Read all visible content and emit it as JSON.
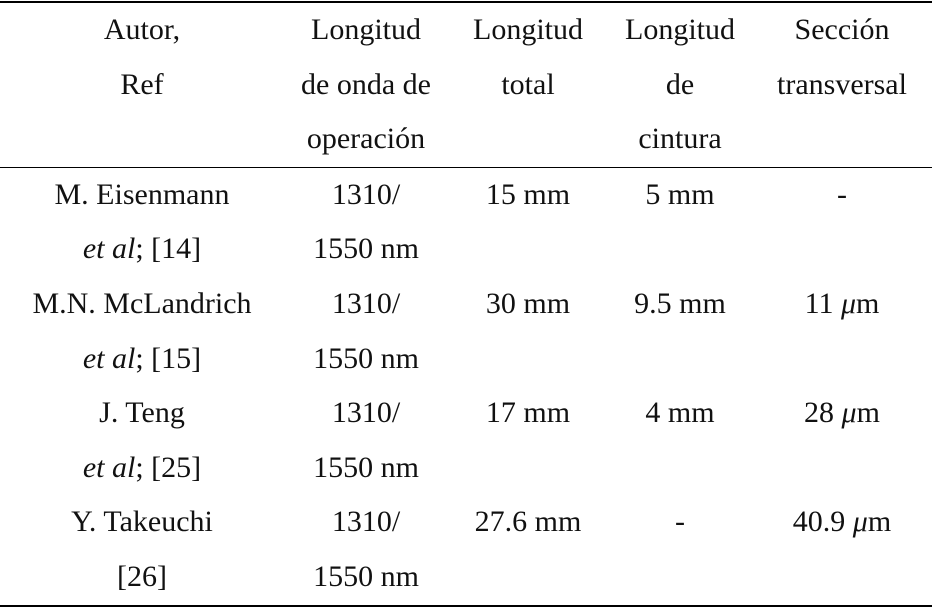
{
  "table": {
    "header": [
      [
        "Autor,",
        "Ref"
      ],
      [
        "Longitud",
        "de onda de",
        "operación"
      ],
      [
        "Longitud",
        "total"
      ],
      [
        "Longitud",
        "de",
        "cintura"
      ],
      [
        "Sección",
        "transversal"
      ]
    ],
    "rows": [
      [
        [
          [
            {
              "text": "M. Eisenmann"
            }
          ],
          [
            {
              "text": "et al",
              "italic": true
            },
            {
              "text": "; [14]"
            }
          ]
        ],
        [
          [
            {
              "text": "1310/"
            }
          ],
          [
            {
              "text": "1550 nm"
            }
          ]
        ],
        [
          [
            {
              "text": "15 mm"
            }
          ]
        ],
        [
          [
            {
              "text": "5 mm"
            }
          ]
        ],
        [
          [
            {
              "text": "-"
            }
          ]
        ]
      ],
      [
        [
          [
            {
              "text": "M.N. McLandrich"
            }
          ],
          [
            {
              "text": "et al",
              "italic": true
            },
            {
              "text": "; [15]"
            }
          ]
        ],
        [
          [
            {
              "text": "1310/"
            }
          ],
          [
            {
              "text": "1550 nm"
            }
          ]
        ],
        [
          [
            {
              "text": "30 mm"
            }
          ]
        ],
        [
          [
            {
              "text": "9.5 mm"
            }
          ]
        ],
        [
          [
            {
              "text": "11 "
            },
            {
              "text": "μ",
              "italic": true
            },
            {
              "text": "m"
            }
          ]
        ]
      ],
      [
        [
          [
            {
              "text": "J. Teng"
            }
          ],
          [
            {
              "text": "et al",
              "italic": true
            },
            {
              "text": "; [25]"
            }
          ]
        ],
        [
          [
            {
              "text": "1310/"
            }
          ],
          [
            {
              "text": "1550 nm"
            }
          ]
        ],
        [
          [
            {
              "text": "17 mm"
            }
          ]
        ],
        [
          [
            {
              "text": "4 mm"
            }
          ]
        ],
        [
          [
            {
              "text": "28 "
            },
            {
              "text": "μ",
              "italic": true
            },
            {
              "text": "m"
            }
          ]
        ]
      ],
      [
        [
          [
            {
              "text": "Y. Takeuchi"
            }
          ],
          [
            {
              "text": "[26]"
            }
          ]
        ],
        [
          [
            {
              "text": "1310/"
            }
          ],
          [
            {
              "text": "1550 nm"
            }
          ]
        ],
        [
          [
            {
              "text": "27.6 mm"
            }
          ]
        ],
        [
          [
            {
              "text": "-"
            }
          ]
        ],
        [
          [
            {
              "text": "40.9 "
            },
            {
              "text": "μ",
              "italic": true
            },
            {
              "text": "m"
            }
          ]
        ]
      ]
    ]
  }
}
